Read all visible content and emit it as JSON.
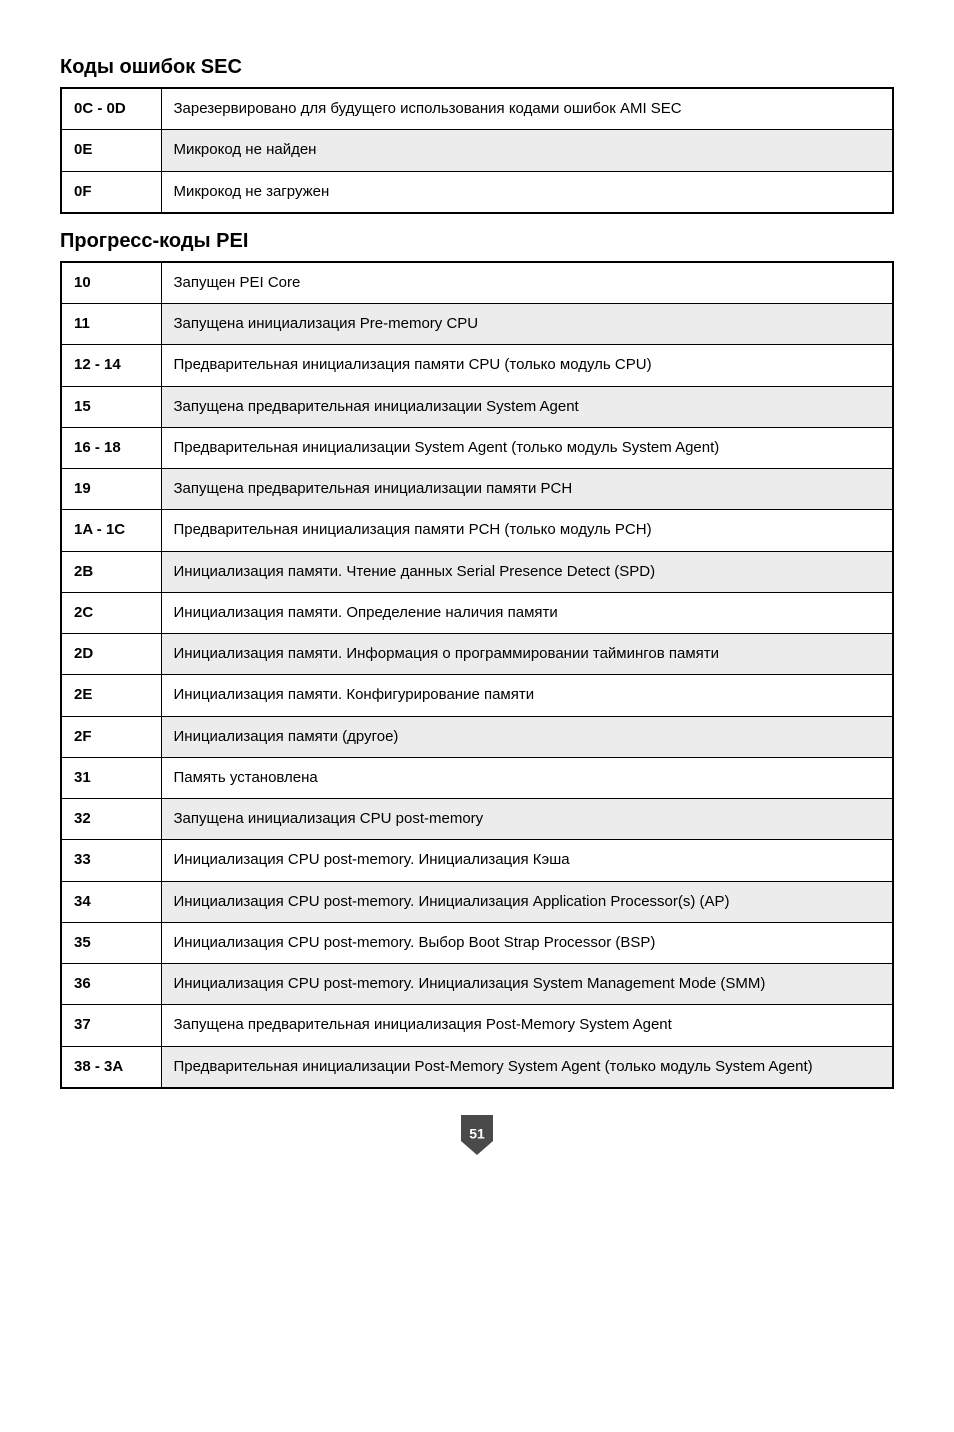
{
  "sections": [
    {
      "title": "Коды ошибок SEC",
      "rows": [
        {
          "code": "0C - 0D",
          "desc": "Зарезервировано для будущего использования кодами ошибок AMI SEC",
          "shaded": false
        },
        {
          "code": "0E",
          "desc": "Микрокод не найден",
          "shaded": true
        },
        {
          "code": "0F",
          "desc": "Микрокод не загружен",
          "shaded": false
        }
      ]
    },
    {
      "title": "Прогресс-коды PEI",
      "rows": [
        {
          "code": "10",
          "desc": "Запущен PEI Core",
          "shaded": false
        },
        {
          "code": "11",
          "desc": "Запущена инициализация Pre-memory CPU",
          "shaded": true
        },
        {
          "code": "12 - 14",
          "desc": "Предварительная инициализация памяти CPU (только модуль CPU)",
          "shaded": false
        },
        {
          "code": "15",
          "desc": "Запущена предварительная инициализации System Agent",
          "shaded": true
        },
        {
          "code": "16 - 18",
          "desc": "Предварительная инициализации System Agent (только модуль System Agent)",
          "shaded": false
        },
        {
          "code": "19",
          "desc": "Запущена предварительная инициализации памяти PCH",
          "shaded": true
        },
        {
          "code": "1A - 1C",
          "desc": "Предварительная инициализация памяти PCH (только модуль PCH)",
          "shaded": false
        },
        {
          "code": "2B",
          "desc": "Инициализация памяти. Чтение данных Serial Presence Detect (SPD)",
          "shaded": true
        },
        {
          "code": "2C",
          "desc": "Инициализация памяти. Определение наличия памяти",
          "shaded": false
        },
        {
          "code": "2D",
          "desc": "Инициализация памяти. Информация о программировании таймингов памяти",
          "shaded": true
        },
        {
          "code": "2E",
          "desc": "Инициализация памяти. Конфигурирование памяти",
          "shaded": false
        },
        {
          "code": "2F",
          "desc": "Инициализация памяти (другое)",
          "shaded": true
        },
        {
          "code": "31",
          "desc": "Память установлена",
          "shaded": false
        },
        {
          "code": "32",
          "desc": "Запущена инициализация CPU post-memory",
          "shaded": true
        },
        {
          "code": "33",
          "desc": "Инициализация CPU post-memory. Инициализация Кэша",
          "shaded": false
        },
        {
          "code": "34",
          "desc": "Инициализация CPU post-memory. Инициализация Application Processor(s) (AP)",
          "shaded": true
        },
        {
          "code": "35",
          "desc": "Инициализация CPU post-memory. Выбор Boot Strap Processor (BSP)",
          "shaded": false
        },
        {
          "code": "36",
          "desc": "Инициализация CPU post-memory. Инициализация System Management Mode (SMM)",
          "shaded": true
        },
        {
          "code": "37",
          "desc": "Запущена предварительная инициализация Post-Memory System Agent",
          "shaded": false
        },
        {
          "code": "38 - 3A",
          "desc": "Предварительная инициализации Post-Memory System Agent (только модуль System Agent)",
          "shaded": true
        }
      ]
    }
  ],
  "page_number": "51",
  "colors": {
    "shaded_bg": "#ececec",
    "border": "#000000",
    "badge_fill": "#4a4a4a"
  }
}
